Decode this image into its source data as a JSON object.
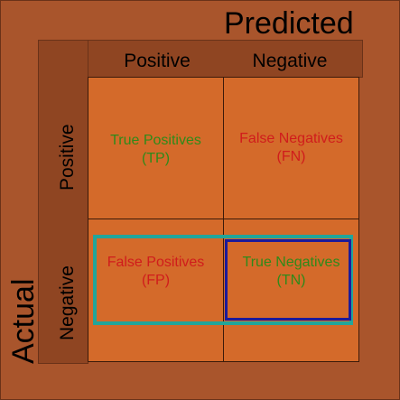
{
  "titles": {
    "predicted": "Predicted",
    "actual": "Actual"
  },
  "columns": {
    "positive": "Positive",
    "negative": "Negative"
  },
  "rows": {
    "positive": "Positive",
    "negative": "Negative"
  },
  "cells": {
    "tp": {
      "name": "True Positives",
      "abbr": "(TP)",
      "color": "#2f8a1a"
    },
    "fn": {
      "name": "False Negatives",
      "abbr": "(FN)",
      "color": "#d01c1c"
    },
    "fp": {
      "name": "False Positives",
      "abbr": "(FP)",
      "color": "#d01c1c"
    },
    "tn": {
      "name": "True Negatives",
      "abbr": "(TN)",
      "color": "#2f8a1a"
    }
  },
  "highlights": {
    "negative_predictions_box_color": "#22a59a",
    "true_negatives_box_color": "#1b1a9a"
  },
  "colors": {
    "background": "#a9552c",
    "header_band": "#8f4522",
    "cell_fill": "#d46a2a"
  }
}
